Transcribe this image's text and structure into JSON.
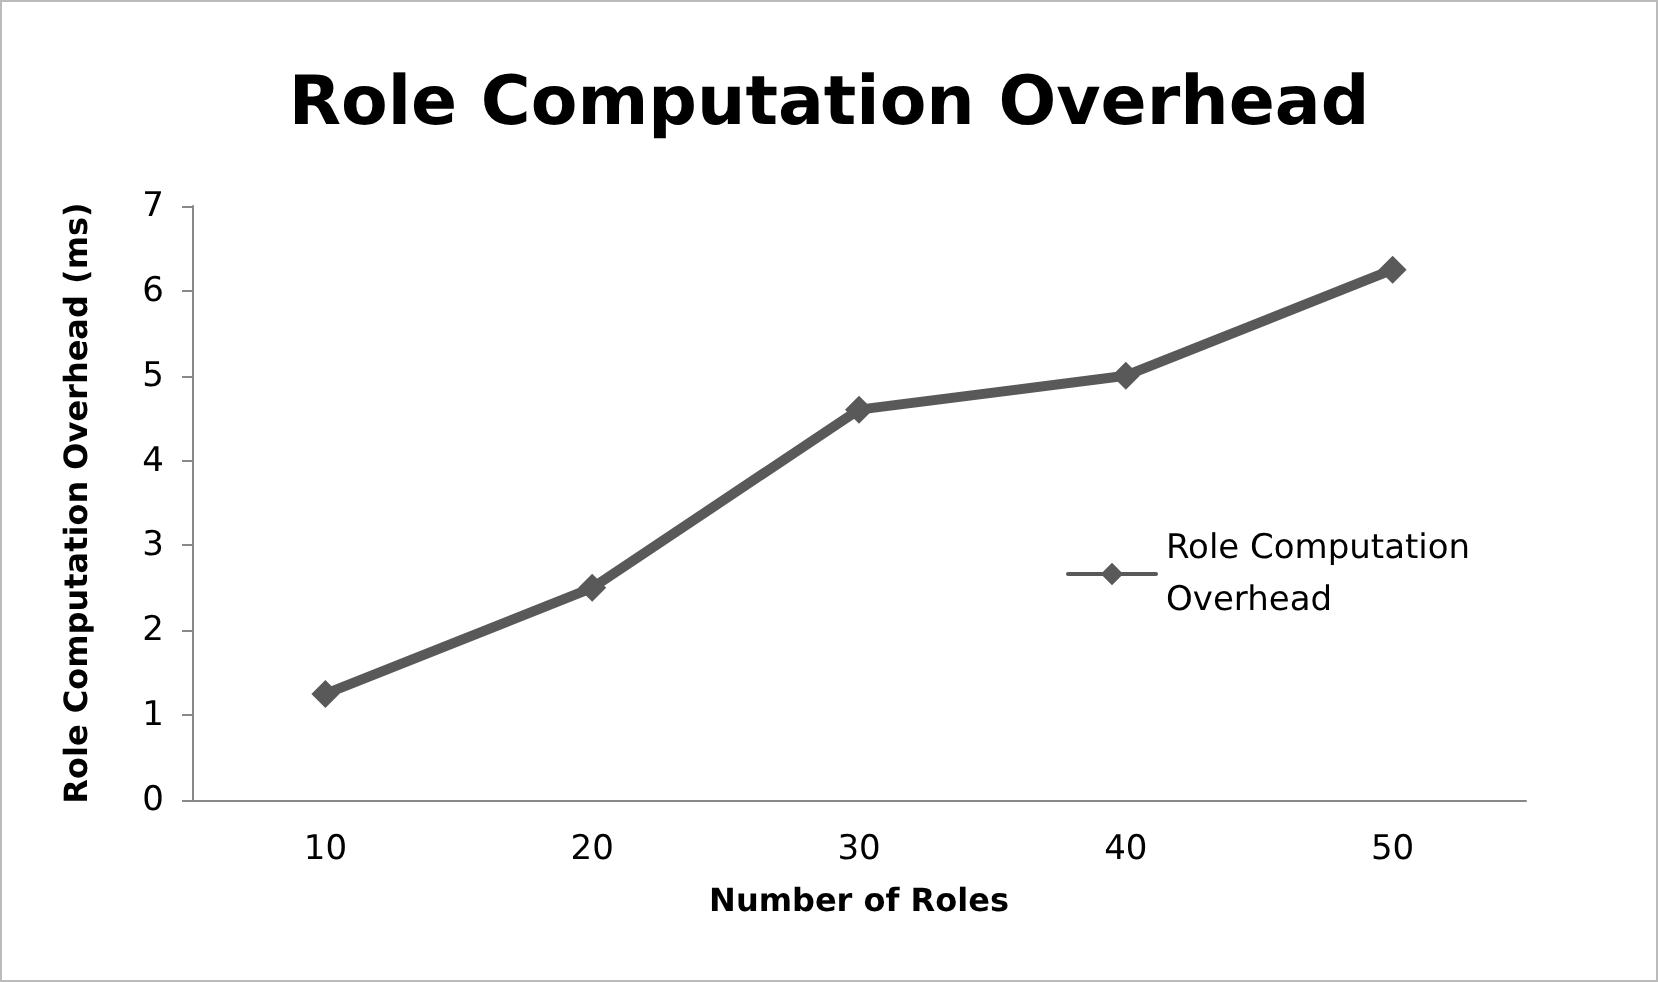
{
  "chart_data": {
    "type": "line",
    "title": "Role Computation Overhead",
    "xlabel": "Number of Roles",
    "ylabel": "Role Computation Overhead (ms)",
    "categories": [
      "10",
      "20",
      "30",
      "40",
      "50"
    ],
    "series": [
      {
        "name": "Role Computation Overhead",
        "color": "#595959",
        "values": [
          1.25,
          2.5,
          4.6,
          5.0,
          6.25
        ]
      }
    ],
    "ylim": [
      0,
      7
    ],
    "yticks": [
      0,
      1,
      2,
      3,
      4,
      5,
      6,
      7
    ],
    "grid": false,
    "legend": "right",
    "marker": "diamond",
    "line_style": "solid"
  }
}
